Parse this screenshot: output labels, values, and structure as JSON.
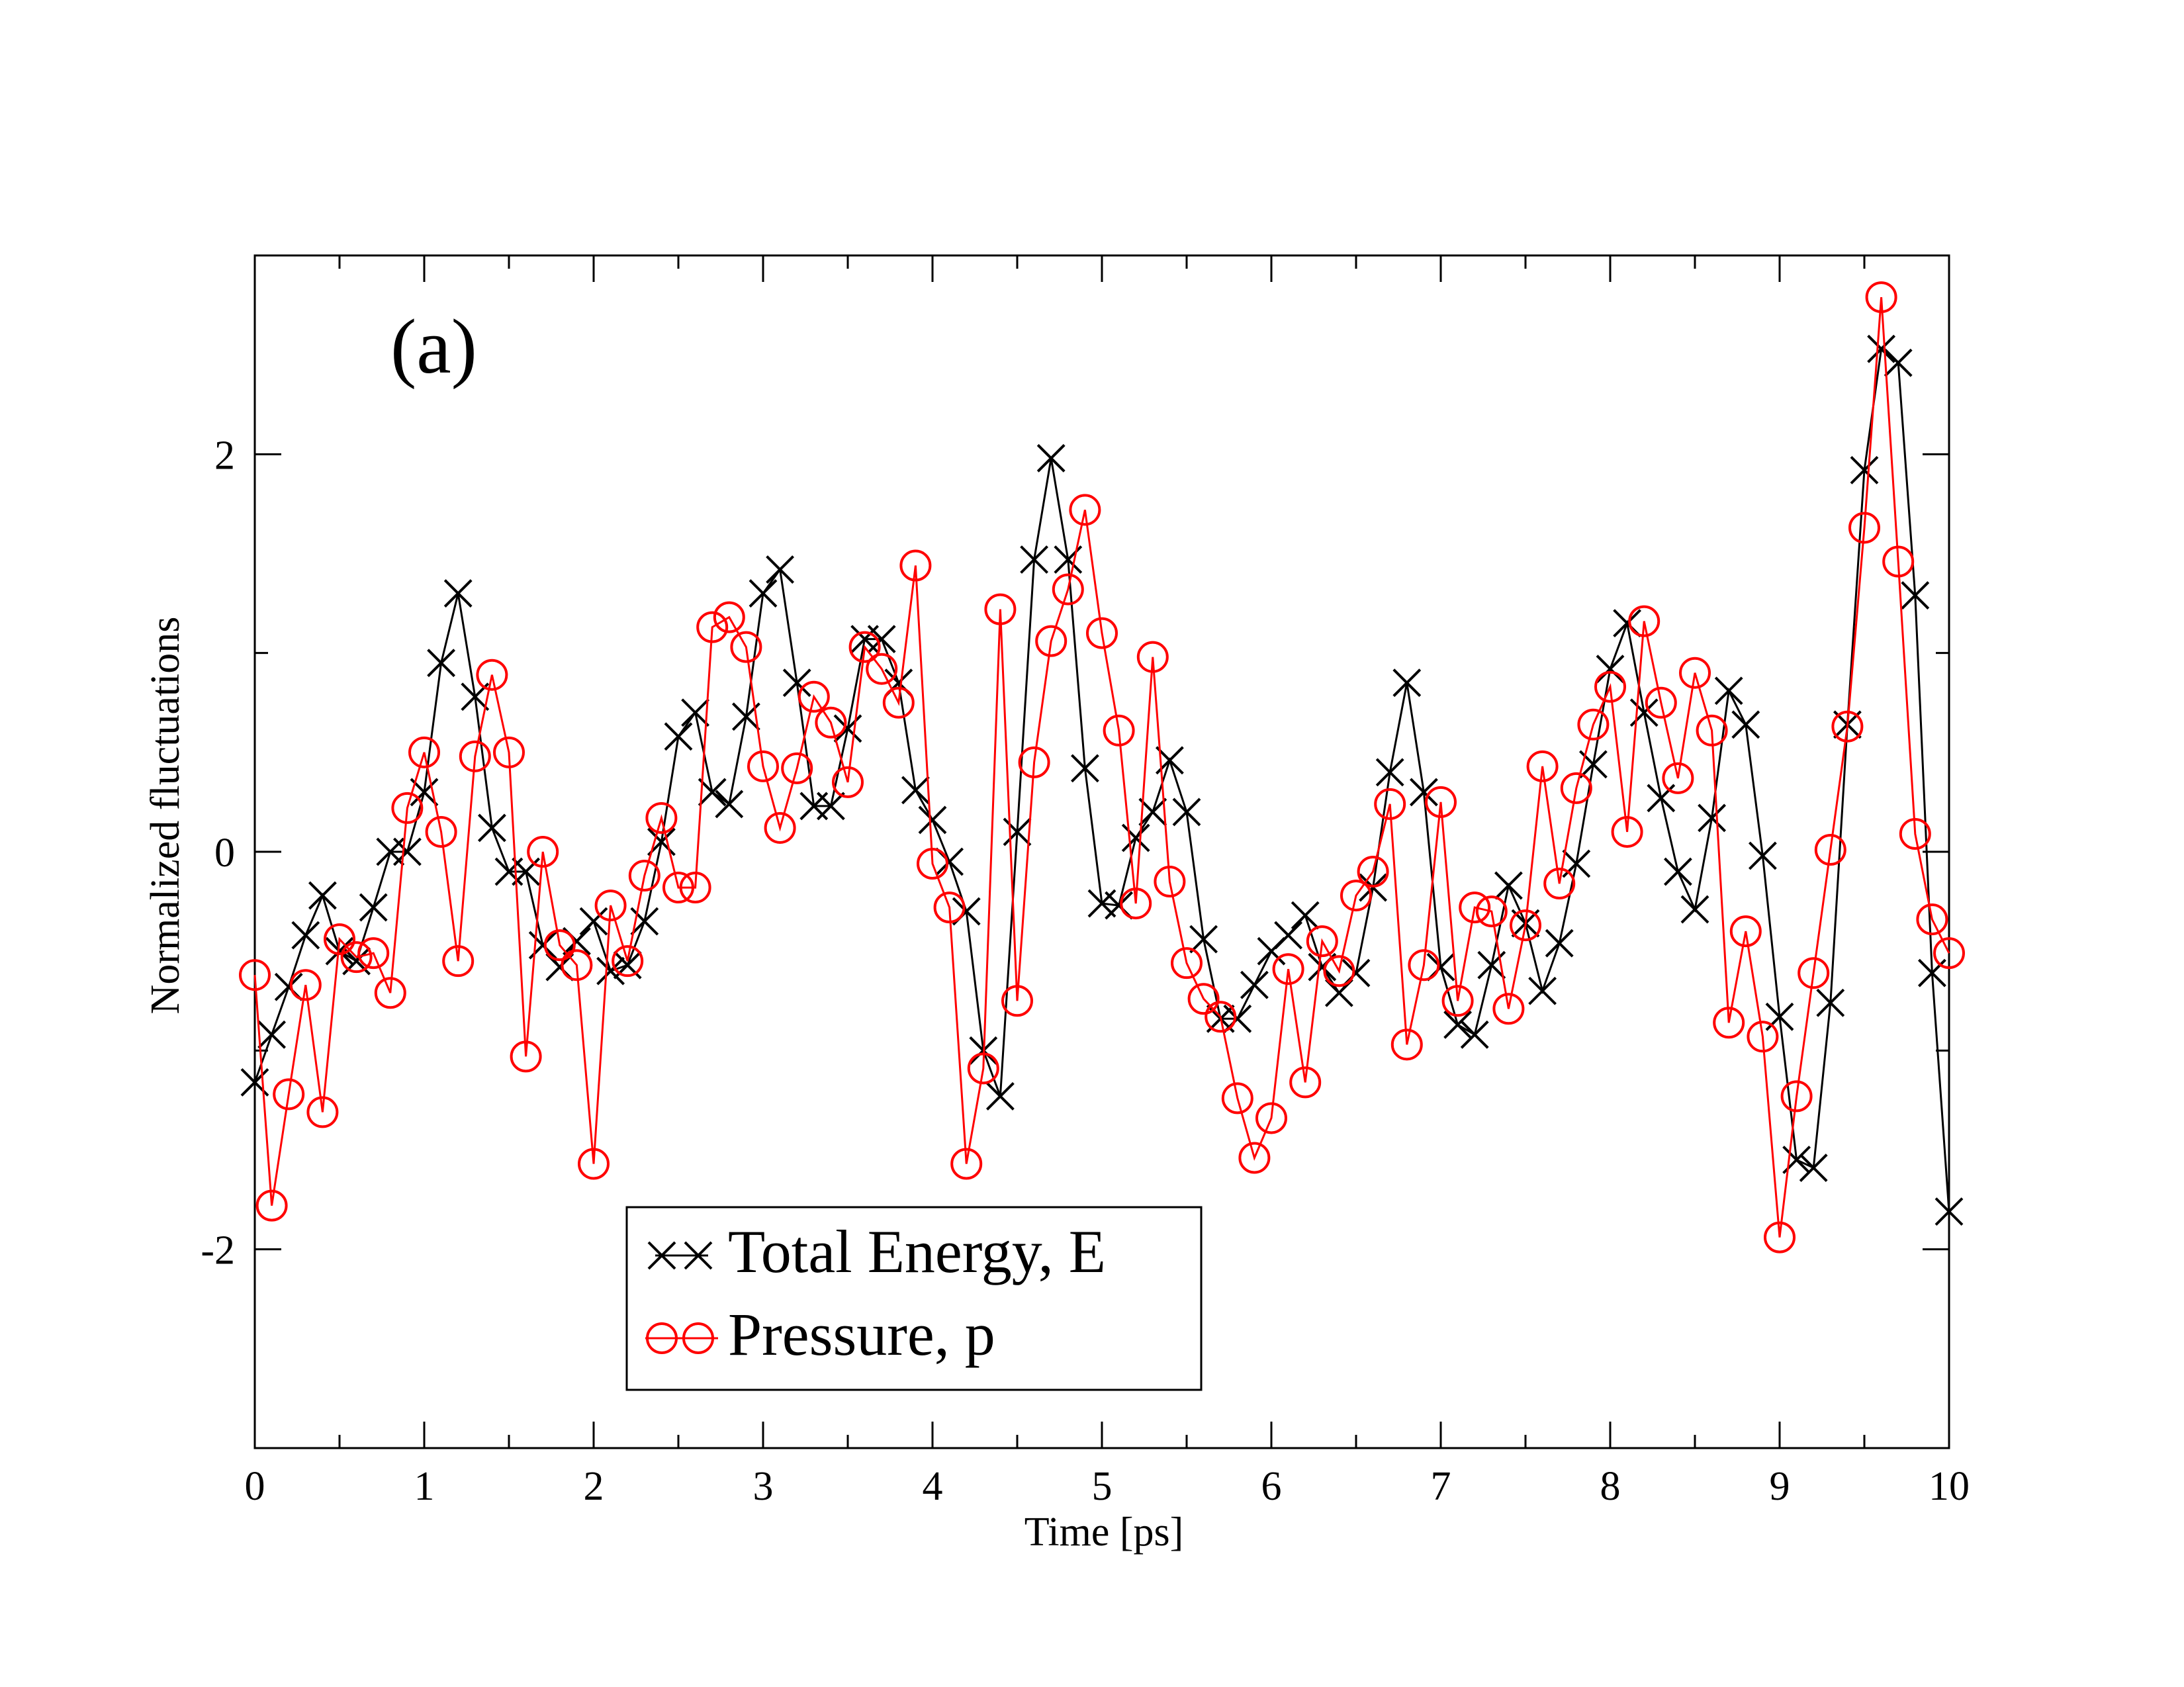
{
  "chart_data": {
    "type": "line",
    "panel_label": "(a)",
    "xlabel": "Time [ps]",
    "ylabel": "Normalized fluctuations",
    "xlim": [
      0,
      10
    ],
    "ylim": [
      -3,
      3
    ],
    "x_ticks": [
      0,
      1,
      2,
      3,
      4,
      5,
      6,
      7,
      8,
      9,
      10
    ],
    "x_tick_labels": [
      "0",
      "1",
      "2",
      "3",
      "4",
      "5",
      "6",
      "7",
      "8",
      "9",
      "10"
    ],
    "y_ticks": [
      -2,
      0,
      2
    ],
    "y_tick_labels": [
      "-2",
      "0",
      "2"
    ],
    "legend_position": "bottom-center",
    "series": [
      {
        "name": "Total Energy, E",
        "color": "#000000",
        "marker": "x",
        "x": [
          0,
          0.1,
          0.2,
          0.3,
          0.4,
          0.5,
          0.6,
          0.7,
          0.8,
          0.9,
          1.0,
          1.1,
          1.2,
          1.3,
          1.4,
          1.5,
          1.6,
          1.7,
          1.8,
          1.9,
          2.0,
          2.1,
          2.2,
          2.3,
          2.4,
          2.5,
          2.6,
          2.7,
          2.8,
          2.9,
          3.0,
          3.1,
          3.2,
          3.3,
          3.4,
          3.5,
          3.6,
          3.7,
          3.8,
          3.9,
          4.0,
          4.1,
          4.2,
          4.3,
          4.4,
          4.5,
          4.6,
          4.7,
          4.8,
          4.9,
          5.0,
          5.1,
          5.2,
          5.3,
          5.4,
          5.5,
          5.6,
          5.7,
          5.8,
          5.9,
          6.0,
          6.1,
          6.2,
          6.3,
          6.4,
          6.5,
          6.6,
          6.7,
          6.8,
          6.9,
          7.0,
          7.1,
          7.2,
          7.3,
          7.4,
          7.5,
          7.6,
          7.7,
          7.8,
          7.9,
          8.0,
          8.1,
          8.2,
          8.3,
          8.4,
          8.5,
          8.6,
          8.7,
          8.8,
          8.9,
          9.0,
          9.1,
          9.2,
          9.3,
          9.4,
          9.5,
          9.6,
          9.7,
          9.8,
          9.9,
          10.0
        ],
        "values": [
          -1.16,
          -0.92,
          -0.68,
          -0.42,
          -0.22,
          -0.5,
          -0.55,
          -0.28,
          0.0,
          0.0,
          0.3,
          0.95,
          1.3,
          0.78,
          0.12,
          -0.1,
          -0.1,
          -0.47,
          -0.58,
          -0.45,
          -0.35,
          -0.6,
          -0.57,
          -0.35,
          0.05,
          0.58,
          0.7,
          0.3,
          0.24,
          0.68,
          1.3,
          1.42,
          0.85,
          0.23,
          0.23,
          0.62,
          1.07,
          1.07,
          0.85,
          0.31,
          0.16,
          -0.05,
          -0.3,
          -1.0,
          -1.23,
          0.1,
          1.47,
          1.98,
          1.47,
          0.42,
          -0.26,
          -0.27,
          0.07,
          0.2,
          0.46,
          0.2,
          -0.44,
          -0.84,
          -0.84,
          -0.67,
          -0.5,
          -0.42,
          -0.32,
          -0.58,
          -0.71,
          -0.61,
          -0.18,
          0.4,
          0.85,
          0.3,
          -0.58,
          -0.87,
          -0.92,
          -0.57,
          -0.17,
          -0.36,
          -0.7,
          -0.46,
          -0.06,
          0.44,
          0.92,
          1.15,
          0.7,
          0.27,
          -0.1,
          -0.29,
          0.17,
          0.81,
          0.64,
          -0.02,
          -0.83,
          -1.55,
          -1.59,
          -0.76,
          0.64,
          1.92,
          2.53,
          2.46,
          1.29,
          -0.61,
          -1.81
        ]
      },
      {
        "name": "Pressure, p",
        "color": "#ff0000",
        "marker": "o",
        "x": [
          0,
          0.1,
          0.2,
          0.3,
          0.4,
          0.5,
          0.6,
          0.7,
          0.8,
          0.9,
          1.0,
          1.1,
          1.2,
          1.3,
          1.4,
          1.5,
          1.6,
          1.7,
          1.8,
          1.9,
          2.0,
          2.1,
          2.2,
          2.3,
          2.4,
          2.5,
          2.6,
          2.7,
          2.8,
          2.9,
          3.0,
          3.1,
          3.2,
          3.3,
          3.4,
          3.5,
          3.6,
          3.7,
          3.8,
          3.9,
          4.0,
          4.1,
          4.2,
          4.3,
          4.4,
          4.5,
          4.6,
          4.7,
          4.8,
          4.9,
          5.0,
          5.1,
          5.2,
          5.3,
          5.4,
          5.5,
          5.6,
          5.7,
          5.8,
          5.9,
          6.0,
          6.1,
          6.2,
          6.3,
          6.4,
          6.5,
          6.6,
          6.7,
          6.8,
          6.9,
          7.0,
          7.1,
          7.2,
          7.3,
          7.4,
          7.5,
          7.6,
          7.7,
          7.8,
          7.9,
          8.0,
          8.1,
          8.2,
          8.3,
          8.4,
          8.5,
          8.6,
          8.7,
          8.8,
          8.9,
          9.0,
          9.1,
          9.2,
          9.3,
          9.4,
          9.5,
          9.6,
          9.7,
          9.8,
          9.9,
          10.0
        ],
        "values": [
          -0.62,
          -1.78,
          -1.22,
          -0.67,
          -1.31,
          -0.44,
          -0.53,
          -0.51,
          -0.71,
          0.22,
          0.5,
          0.1,
          -0.55,
          0.48,
          0.89,
          0.5,
          -1.03,
          0.0,
          -0.47,
          -0.57,
          -1.57,
          -0.27,
          -0.55,
          -0.12,
          0.17,
          -0.18,
          -0.18,
          1.13,
          1.18,
          1.03,
          0.43,
          0.12,
          0.42,
          0.78,
          0.65,
          0.35,
          1.03,
          0.92,
          0.75,
          1.44,
          -0.06,
          -0.28,
          -1.57,
          -1.09,
          1.22,
          -0.75,
          0.45,
          1.06,
          1.32,
          1.72,
          1.1,
          0.61,
          -0.26,
          0.98,
          -0.15,
          -0.56,
          -0.74,
          -0.83,
          -1.24,
          -1.54,
          -1.34,
          -0.59,
          -1.16,
          -0.45,
          -0.6,
          -0.22,
          -0.1,
          0.24,
          -0.97,
          -0.57,
          0.25,
          -0.75,
          -0.28,
          -0.3,
          -0.79,
          -0.37,
          0.43,
          -0.16,
          0.32,
          0.64,
          0.83,
          0.1,
          1.16,
          0.75,
          0.37,
          0.9,
          0.61,
          -0.86,
          -0.4,
          -0.93,
          -1.94,
          -1.23,
          -0.61,
          0.01,
          0.63,
          1.63,
          2.79,
          1.46,
          0.09,
          -0.34,
          -0.51
        ]
      }
    ]
  }
}
